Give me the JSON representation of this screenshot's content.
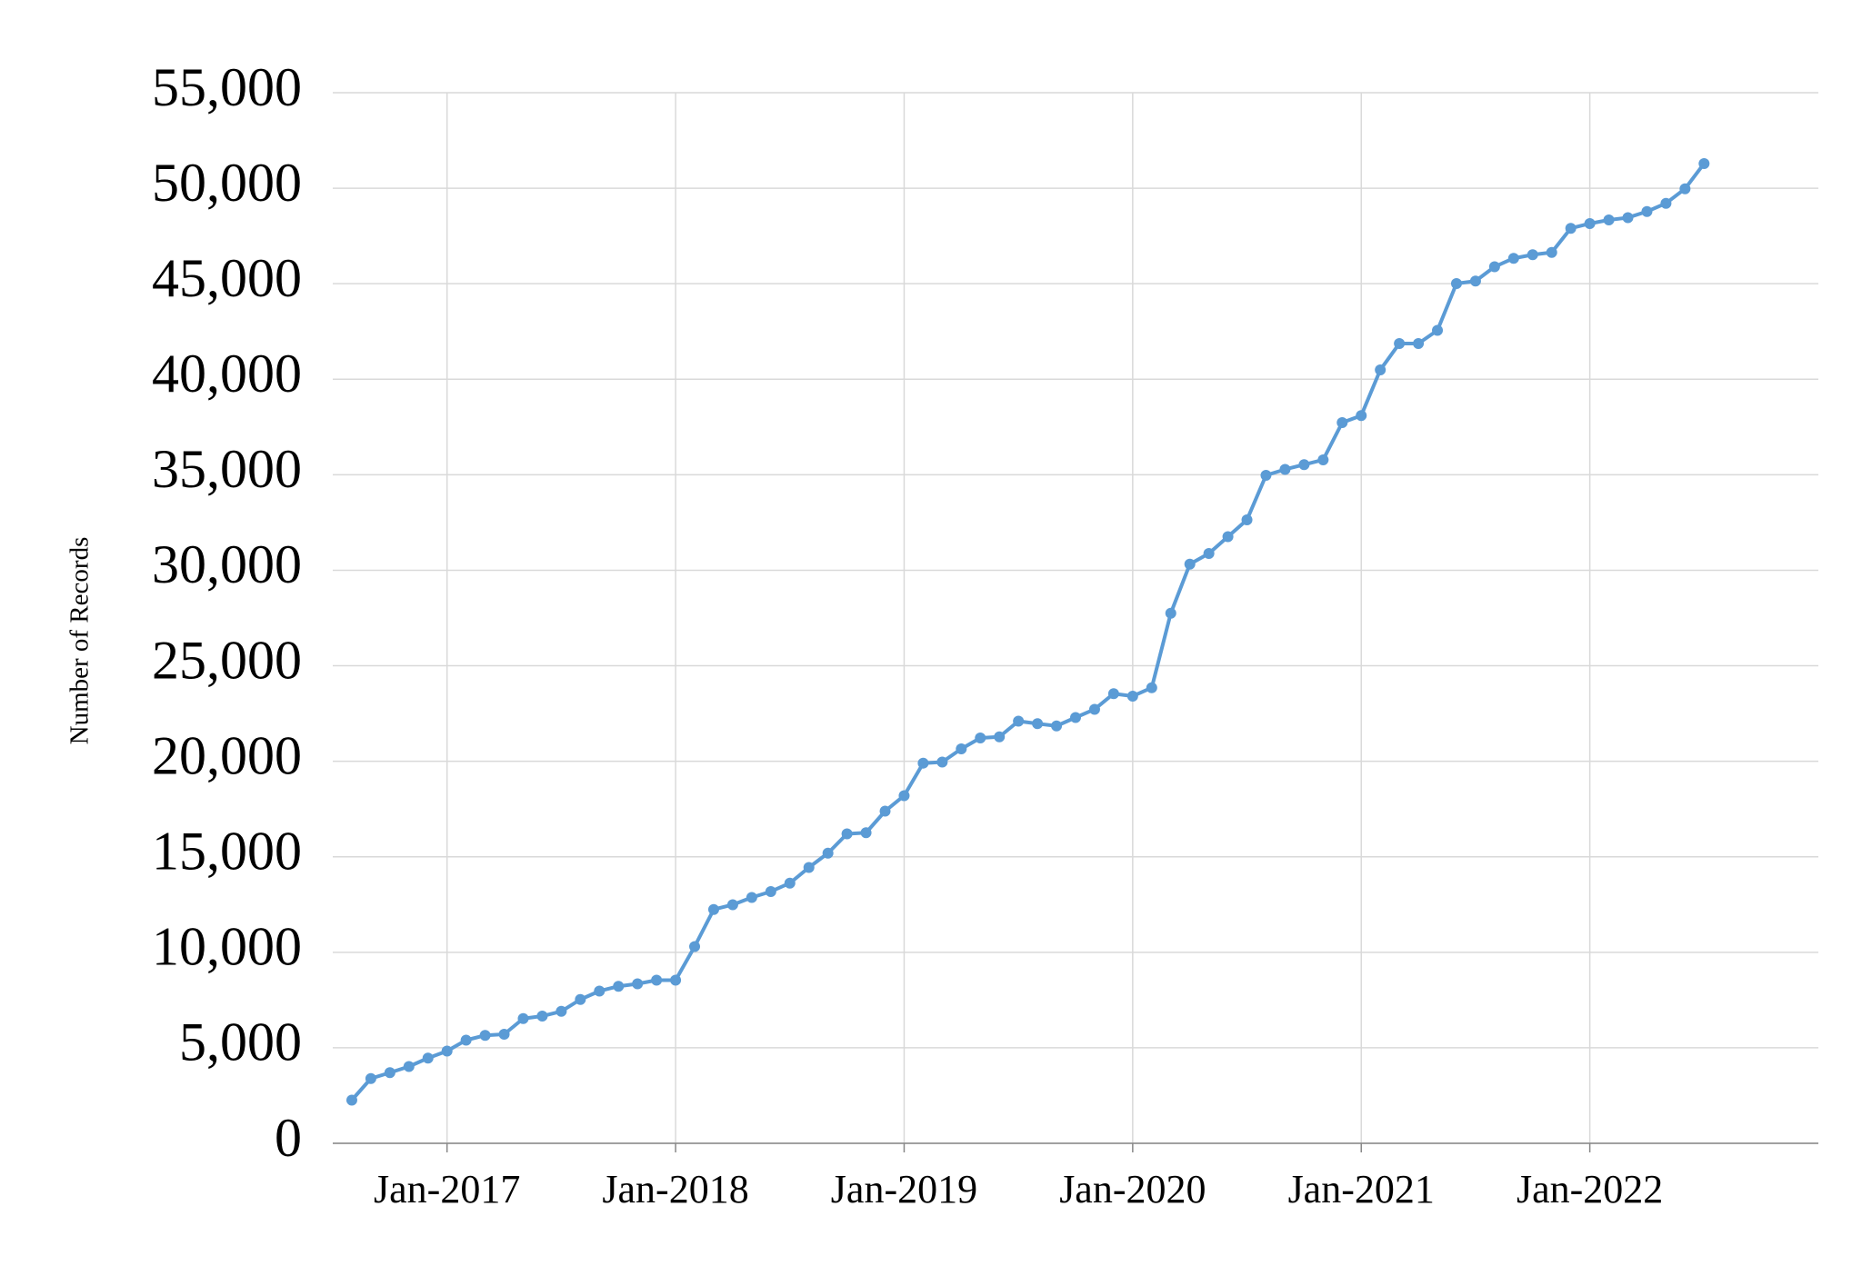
{
  "chart_data": {
    "type": "line",
    "y_label": "Number of Records",
    "x": [
      "2016-08",
      "2016-09",
      "2016-10",
      "2016-11",
      "2016-12",
      "2017-01",
      "2017-02",
      "2017-03",
      "2017-04",
      "2017-05",
      "2017-06",
      "2017-07",
      "2017-08",
      "2017-09",
      "2017-10",
      "2017-11",
      "2017-12",
      "2018-01",
      "2018-02",
      "2018-03",
      "2018-04",
      "2018-05",
      "2018-06",
      "2018-07",
      "2018-08",
      "2018-09",
      "2018-10",
      "2018-11",
      "2018-12",
      "2019-01",
      "2019-02",
      "2019-03",
      "2019-04",
      "2019-05",
      "2019-06",
      "2019-07",
      "2019-08",
      "2019-09",
      "2019-10",
      "2019-11",
      "2019-12",
      "2020-01",
      "2020-02",
      "2020-03",
      "2020-04",
      "2020-05",
      "2020-06",
      "2020-07",
      "2020-08",
      "2020-09",
      "2020-10",
      "2020-11",
      "2020-12",
      "2021-01",
      "2021-02",
      "2021-03",
      "2021-04",
      "2021-05",
      "2021-06",
      "2021-07",
      "2021-08",
      "2021-09",
      "2021-10",
      "2021-11",
      "2021-12",
      "2022-01",
      "2022-02",
      "2022-03",
      "2022-04",
      "2022-05",
      "2022-06",
      "2022-07"
    ],
    "series": [
      {
        "name": "Number of Records",
        "color": "#5b9bd5",
        "values": [
          2260,
          3390,
          3700,
          4020,
          4460,
          4830,
          5400,
          5650,
          5710,
          6530,
          6660,
          6910,
          7530,
          7970,
          8220,
          8350,
          8540,
          8540,
          10300,
          12240,
          12490,
          12870,
          13180,
          13620,
          14440,
          15190,
          16200,
          16260,
          17390,
          18200,
          19900,
          19960,
          20650,
          21220,
          21280,
          22100,
          21970,
          21850,
          22290,
          22720,
          23540,
          23410,
          23850,
          27750,
          30320,
          30880,
          31760,
          32640,
          34970,
          35280,
          35530,
          35780,
          37730,
          38100,
          40490,
          41870,
          41870,
          42560,
          45010,
          45140,
          45890,
          46330,
          46520,
          46640,
          47900,
          48150,
          48340,
          48460,
          48780,
          49210,
          49970,
          51290
        ]
      }
    ],
    "xlim": [
      "2016-07",
      "2023-01"
    ],
    "xticks": [
      {
        "value": "2017-01",
        "label": "Jan-2017"
      },
      {
        "value": "2018-01",
        "label": "Jan-2018"
      },
      {
        "value": "2019-01",
        "label": "Jan-2019"
      },
      {
        "value": "2020-01",
        "label": "Jan-2020"
      },
      {
        "value": "2021-01",
        "label": "Jan-2021"
      },
      {
        "value": "2022-01",
        "label": "Jan-2022"
      }
    ],
    "ylim": [
      0,
      55000
    ],
    "yticks": [
      0,
      {
        "value": 5000,
        "label": "5,000"
      },
      {
        "value": 10000,
        "label": "10,000"
      },
      {
        "value": 15000,
        "label": "15,000"
      },
      {
        "value": 20000,
        "label": "20,000"
      },
      {
        "value": 25000,
        "label": "25,000"
      },
      {
        "value": 30000,
        "label": "30,000"
      },
      {
        "value": 35000,
        "label": "35,000"
      },
      {
        "value": 40000,
        "label": "40,000"
      },
      {
        "value": 45000,
        "label": "45,000"
      },
      {
        "value": 50000,
        "label": "50,000"
      },
      {
        "value": 55000,
        "label": "55,000"
      }
    ],
    "grid": true
  }
}
